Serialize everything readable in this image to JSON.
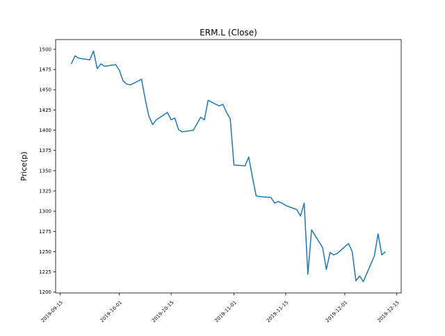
{
  "figure": {
    "title": "ERM.L (Close)",
    "ylabel": "Price(p)",
    "background": "#ffffff",
    "line_color": "#1f77b4",
    "spine_color": "#000000"
  },
  "chart_data": {
    "type": "line",
    "title": "ERM.L (Close)",
    "xlabel": "",
    "ylabel": "Price(p)",
    "grid": false,
    "legend_position": "none",
    "ylim": [
      1199,
      1512
    ],
    "yticks": [
      1200,
      1225,
      1250,
      1275,
      1300,
      1325,
      1350,
      1375,
      1400,
      1425,
      1450,
      1475,
      1500
    ],
    "xticks": [
      "2019-09-15",
      "2019-10-01",
      "2019-10-15",
      "2019-11-01",
      "2019-11-15",
      "2019-12-01",
      "2019-12-15"
    ],
    "series": [
      {
        "name": "Close",
        "color": "#1f77b4",
        "dates": [
          "2019-09-18",
          "2019-09-19",
          "2019-09-20",
          "2019-09-23",
          "2019-09-24",
          "2019-09-25",
          "2019-09-26",
          "2019-09-27",
          "2019-09-30",
          "2019-10-01",
          "2019-10-02",
          "2019-10-03",
          "2019-10-04",
          "2019-10-07",
          "2019-10-08",
          "2019-10-09",
          "2019-10-10",
          "2019-10-11",
          "2019-10-14",
          "2019-10-15",
          "2019-10-16",
          "2019-10-17",
          "2019-10-18",
          "2019-10-21",
          "2019-10-22",
          "2019-10-23",
          "2019-10-24",
          "2019-10-25",
          "2019-10-28",
          "2019-10-29",
          "2019-10-30",
          "2019-10-31",
          "2019-11-01",
          "2019-11-04",
          "2019-11-05",
          "2019-11-06",
          "2019-11-07",
          "2019-11-08",
          "2019-11-11",
          "2019-11-12",
          "2019-11-13",
          "2019-11-14",
          "2019-11-15",
          "2019-11-18",
          "2019-11-19",
          "2019-11-20",
          "2019-11-21",
          "2019-11-22",
          "2019-11-25",
          "2019-11-26",
          "2019-11-27",
          "2019-11-28",
          "2019-11-29",
          "2019-12-02",
          "2019-12-03",
          "2019-12-04",
          "2019-12-05",
          "2019-12-06",
          "2019-12-09",
          "2019-12-10",
          "2019-12-11",
          "2019-12-12"
        ],
        "values": [
          1482,
          1492,
          1489,
          1487,
          1498,
          1476,
          1482,
          1479,
          1481,
          1474,
          1461,
          1457,
          1456,
          1463,
          1438,
          1417,
          1407,
          1413,
          1422,
          1413,
          1415,
          1401,
          1398,
          1400,
          1408,
          1416,
          1413,
          1437,
          1430,
          1432,
          1422,
          1414,
          1357,
          1356,
          1367,
          1342,
          1319,
          1318,
          1317,
          1310,
          1312,
          1310,
          1307,
          1302,
          1294,
          1310,
          1222,
          1277,
          1255,
          1228,
          1249,
          1246,
          1248,
          1260,
          1250,
          1214,
          1220,
          1213,
          1245,
          1272,
          1246,
          1250
        ]
      }
    ]
  }
}
